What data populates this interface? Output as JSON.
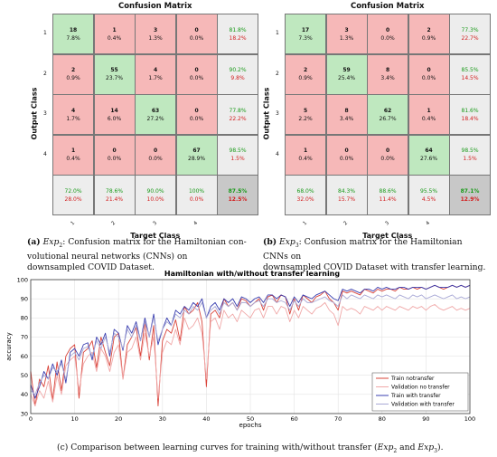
{
  "matrices": [
    {
      "title": "Confusion Matrix",
      "ylabel": "Output Class",
      "xlabel": "Target Class",
      "row_ticks": [
        "1",
        "2",
        "3",
        "4"
      ],
      "col_ticks": [
        "1",
        "2",
        "3",
        "4"
      ],
      "cells": [
        [
          [
            "18",
            "7.8%"
          ],
          [
            "1",
            "0.4%"
          ],
          [
            "3",
            "1.3%"
          ],
          [
            "0",
            "0.0%"
          ]
        ],
        [
          [
            "2",
            "0.9%"
          ],
          [
            "55",
            "23.7%"
          ],
          [
            "4",
            "1.7%"
          ],
          [
            "0",
            "0.0%"
          ]
        ],
        [
          [
            "4",
            "1.7%"
          ],
          [
            "14",
            "6.0%"
          ],
          [
            "63",
            "27.2%"
          ],
          [
            "0",
            "0.0%"
          ]
        ],
        [
          [
            "1",
            "0.4%"
          ],
          [
            "0",
            "0.0%"
          ],
          [
            "0",
            "0.0%"
          ],
          [
            "67",
            "28.9%"
          ]
        ]
      ],
      "row_summary": [
        [
          "81.8%",
          "18.2%"
        ],
        [
          "90.2%",
          "9.8%"
        ],
        [
          "77.8%",
          "22.2%"
        ],
        [
          "98.5%",
          "1.5%"
        ]
      ],
      "col_summary": [
        [
          "72.0%",
          "28.0%"
        ],
        [
          "78.6%",
          "21.4%"
        ],
        [
          "90.0%",
          "10.0%"
        ],
        [
          "100%",
          "0.0%"
        ]
      ],
      "total": [
        "87.5%",
        "12.5%"
      ]
    },
    {
      "title": "Confusion Matrix",
      "ylabel": "Output Class",
      "xlabel": "Target Class",
      "row_ticks": [
        "1",
        "2",
        "3",
        "4"
      ],
      "col_ticks": [
        "1",
        "2",
        "3",
        "4"
      ],
      "cells": [
        [
          [
            "17",
            "7.3%"
          ],
          [
            "3",
            "1.3%"
          ],
          [
            "0",
            "0.0%"
          ],
          [
            "2",
            "0.9%"
          ]
        ],
        [
          [
            "2",
            "0.9%"
          ],
          [
            "59",
            "25.4%"
          ],
          [
            "8",
            "3.4%"
          ],
          [
            "0",
            "0.0%"
          ]
        ],
        [
          [
            "5",
            "2.2%"
          ],
          [
            "8",
            "3.4%"
          ],
          [
            "62",
            "26.7%"
          ],
          [
            "1",
            "0.4%"
          ]
        ],
        [
          [
            "1",
            "0.4%"
          ],
          [
            "0",
            "0.0%"
          ],
          [
            "0",
            "0.0%"
          ],
          [
            "64",
            "27.6%"
          ]
        ]
      ],
      "row_summary": [
        [
          "77.3%",
          "22.7%"
        ],
        [
          "85.5%",
          "14.5%"
        ],
        [
          "81.6%",
          "18.4%"
        ],
        [
          "98.5%",
          "1.5%"
        ]
      ],
      "col_summary": [
        [
          "68.0%",
          "32.0%"
        ],
        [
          "84.3%",
          "15.7%"
        ],
        [
          "88.6%",
          "11.4%"
        ],
        [
          "95.5%",
          "4.5%"
        ]
      ],
      "total": [
        "87.1%",
        "12.9%"
      ]
    }
  ],
  "captions": {
    "a_label": "(a)",
    "a_exp": "Exp",
    "a_sub": "2",
    "a_line1": ": Confusion matrix for the Hamiltonian con-",
    "a_line2": "volutional neural networks (CNNs) on",
    "a_line3": "downsampled COVID Dataset.",
    "b_label": "(b)",
    "b_exp": "Exp",
    "b_sub": "3",
    "b_line1": ":  Confusion matrix for the Hamiltonian",
    "b_line2": "CNNs on",
    "b_line3": "downsampled COVID Dataset with transfer learning.",
    "c_text": "(c) Comparison between learning curves for training with/without transfer (",
    "c_exp1": "Exp",
    "c_sub1": "2",
    "c_and": " and ",
    "c_exp2": "Exp",
    "c_sub2": "3",
    "c_end": ")."
  },
  "colors": {
    "diag": "#bfe8bf",
    "off": "#f6b8b8",
    "summary": "#ededed",
    "total": "#c8c8c8",
    "green_text": "#1a9a1a",
    "red_text": "#d21e1e"
  },
  "chart_data": {
    "type": "line",
    "title": "Hamiltonian with/without transfer learning",
    "xlabel": "epochs",
    "ylabel": "accuracy",
    "xlim": [
      0,
      100
    ],
    "ylim": [
      30,
      100
    ],
    "xticks": [
      0,
      10,
      20,
      30,
      40,
      50,
      60,
      70,
      80,
      90,
      100
    ],
    "yticks": [
      30,
      40,
      50,
      60,
      70,
      80,
      90,
      100
    ],
    "grid": true,
    "legend_position": "bottom-right",
    "series": [
      {
        "name": "Train notransfer",
        "color": "#d9443a",
        "dash": "",
        "y": [
          52,
          34,
          48,
          44,
          55,
          37,
          57,
          42,
          60,
          64,
          66,
          38,
          62,
          64,
          68,
          54,
          70,
          62,
          55,
          70,
          72,
          48,
          66,
          70,
          75,
          60,
          78,
          58,
          76,
          34,
          68,
          74,
          72,
          79,
          68,
          86,
          82,
          84,
          88,
          78,
          44,
          82,
          84,
          80,
          90,
          86,
          88,
          84,
          90,
          89,
          86,
          88,
          90,
          84,
          91,
          92,
          88,
          92,
          91,
          82,
          90,
          84,
          92,
          90,
          88,
          91,
          92,
          94,
          90,
          88,
          84,
          94,
          93,
          94,
          93,
          92,
          95,
          94,
          93,
          95,
          94,
          95,
          95,
          94,
          96,
          95,
          95,
          96,
          95,
          96,
          95,
          96,
          97,
          96,
          95,
          96,
          97,
          96,
          97,
          96,
          97
        ]
      },
      {
        "name": "Validation no transfer",
        "color": "#f0a8a8",
        "dash": "",
        "y": [
          40,
          34,
          42,
          38,
          47,
          36,
          50,
          40,
          55,
          58,
          60,
          42,
          56,
          60,
          62,
          52,
          64,
          60,
          52,
          62,
          66,
          48,
          62,
          64,
          70,
          58,
          72,
          60,
          70,
          38,
          62,
          68,
          66,
          74,
          66,
          80,
          74,
          76,
          80,
          72,
          48,
          78,
          80,
          74,
          84,
          80,
          82,
          78,
          84,
          82,
          80,
          84,
          85,
          80,
          86,
          86,
          82,
          86,
          85,
          78,
          84,
          80,
          86,
          84,
          82,
          85,
          86,
          88,
          84,
          82,
          76,
          86,
          84,
          85,
          84,
          82,
          86,
          85,
          84,
          86,
          84,
          86,
          85,
          84,
          86,
          85,
          84,
          86,
          85,
          86,
          84,
          86,
          87,
          85,
          84,
          85,
          86,
          84,
          85,
          84,
          85
        ]
      },
      {
        "name": "Train with transfer",
        "color": "#3a3fb0",
        "dash": "",
        "y": [
          45,
          38,
          44,
          52,
          48,
          56,
          50,
          58,
          46,
          62,
          64,
          60,
          66,
          67,
          58,
          70,
          66,
          72,
          60,
          74,
          72,
          63,
          76,
          72,
          78,
          68,
          80,
          70,
          82,
          66,
          74,
          80,
          76,
          84,
          82,
          86,
          84,
          88,
          86,
          90,
          80,
          86,
          88,
          84,
          90,
          88,
          90,
          86,
          91,
          90,
          88,
          90,
          91,
          88,
          92,
          92,
          90,
          92,
          91,
          86,
          91,
          88,
          92,
          91,
          90,
          92,
          93,
          94,
          92,
          90,
          89,
          95,
          94,
          95,
          94,
          93,
          95,
          95,
          94,
          96,
          95,
          96,
          95,
          95,
          96,
          96,
          95,
          96,
          96,
          96,
          95,
          96,
          97,
          96,
          96,
          96,
          97,
          96,
          97,
          96,
          97
        ]
      },
      {
        "name": "Validation with transfer",
        "color": "#a9a9d6",
        "dash": "",
        "y": [
          42,
          40,
          46,
          50,
          48,
          54,
          52,
          56,
          48,
          60,
          62,
          58,
          64,
          65,
          60,
          68,
          64,
          70,
          62,
          72,
          70,
          64,
          74,
          70,
          76,
          68,
          78,
          70,
          80,
          68,
          74,
          78,
          76,
          82,
          80,
          84,
          82,
          86,
          84,
          88,
          80,
          84,
          86,
          82,
          88,
          86,
          88,
          84,
          88,
          88,
          86,
          88,
          89,
          86,
          90,
          90,
          88,
          89,
          88,
          84,
          89,
          86,
          90,
          88,
          88,
          89,
          90,
          91,
          89,
          88,
          86,
          92,
          90,
          92,
          91,
          90,
          92,
          91,
          90,
          92,
          91,
          92,
          91,
          90,
          92,
          91,
          90,
          92,
          91,
          92,
          90,
          91,
          92,
          91,
          90,
          91,
          92,
          90,
          91,
          90,
          91
        ]
      }
    ]
  }
}
